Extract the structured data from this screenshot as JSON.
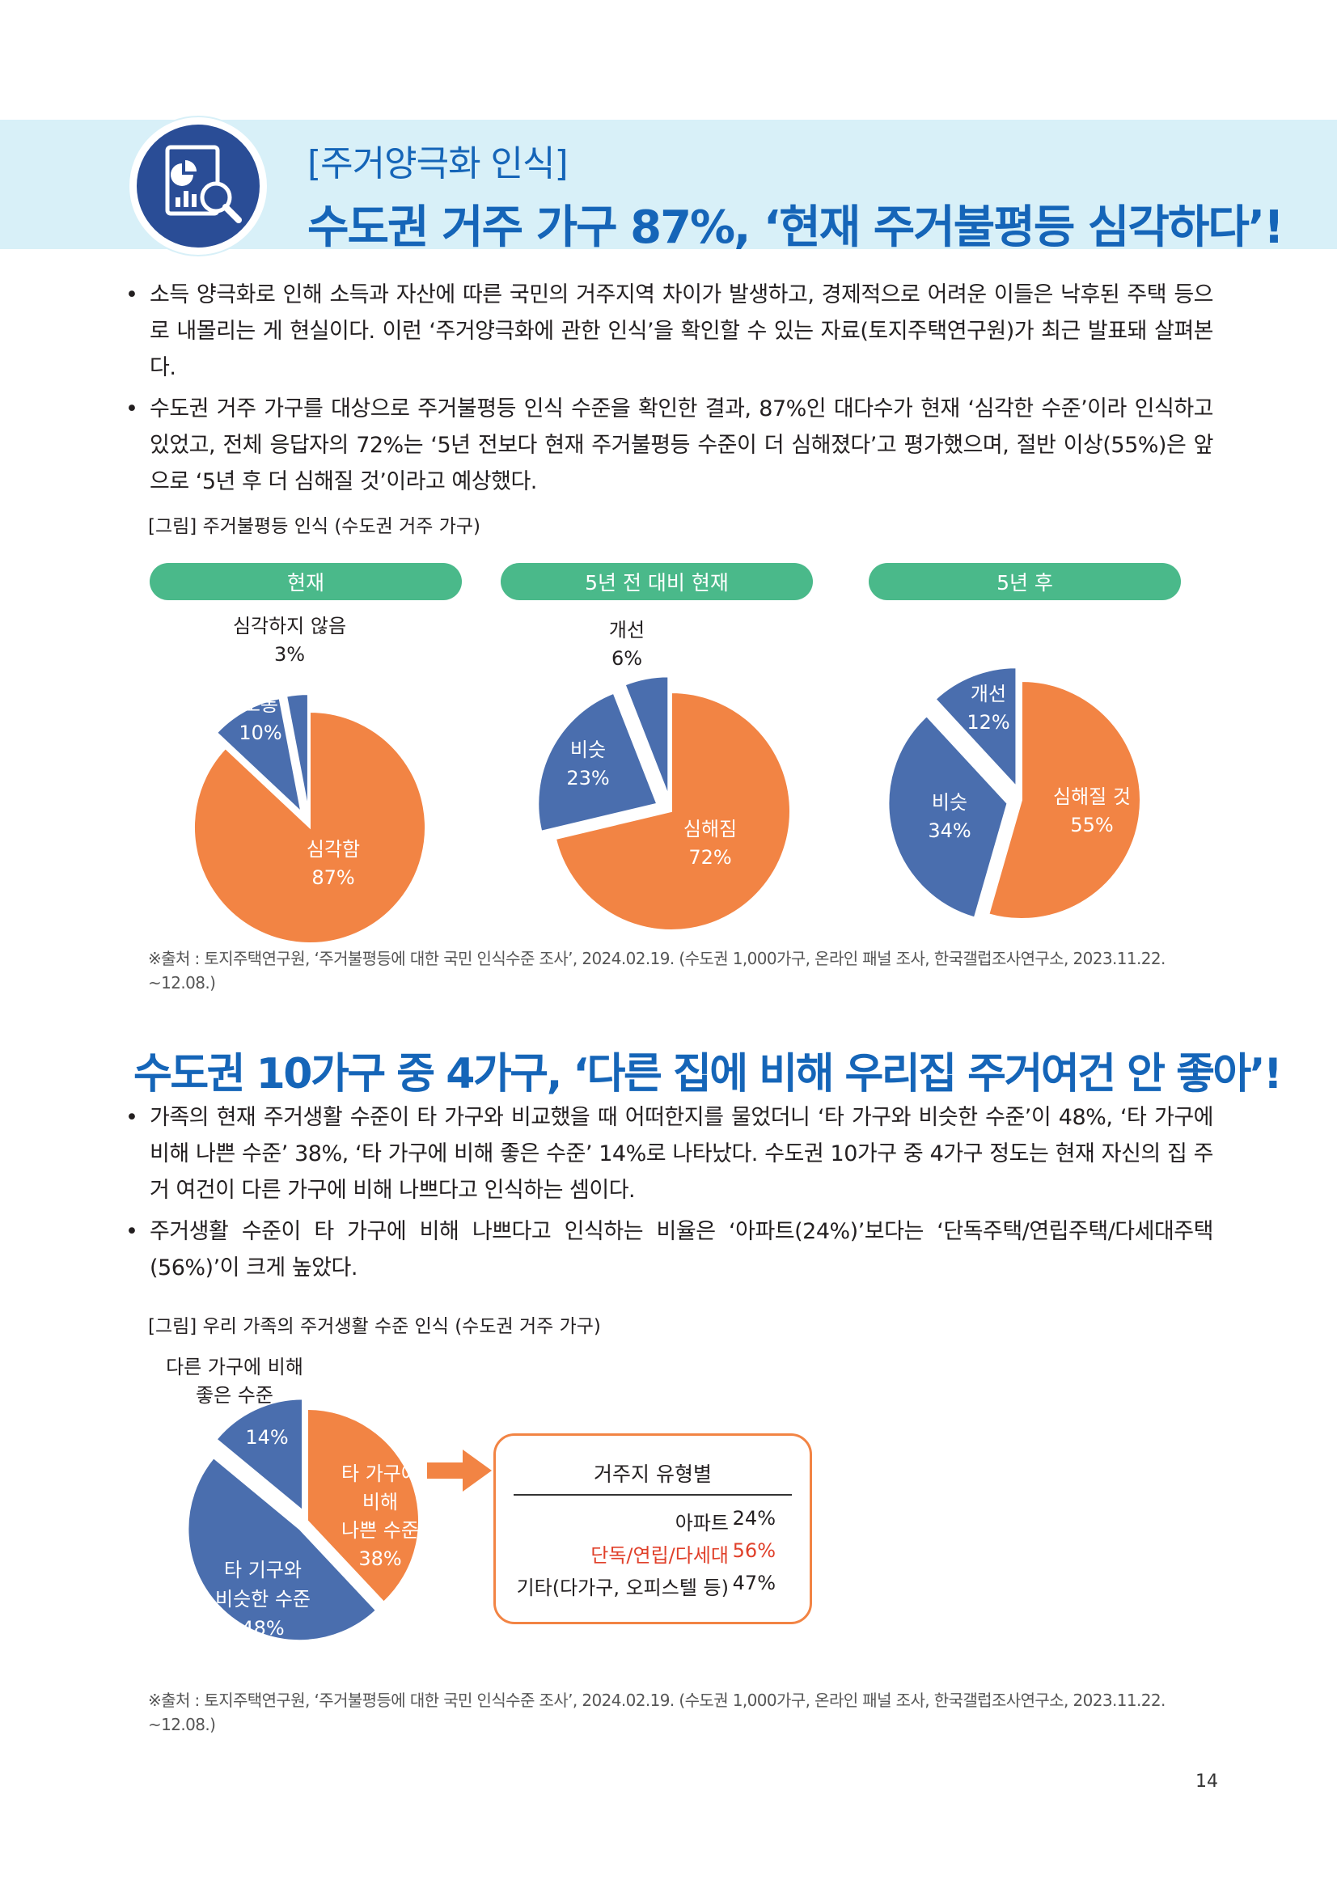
{
  "header": {
    "subtitle": "[주거양극화 인식]",
    "title": "수도권 거주 가구 87%, ‘현재 주거불평등 심각하다’!"
  },
  "section1": {
    "bullets": [
      "소득 양극화로 인해 소득과 자산에 따른 국민의 거주지역 차이가 발생하고, 경제적으로 어려운 이들은 낙후된 주택 등으로 내몰리는 게 현실이다. 이런 ‘주거양극화에 관한 인식’을 확인할 수 있는 자료(토지주택연구원)가 최근 발표돼 살펴본다.",
      "수도권 거주 가구를 대상으로 주거불평등 인식 수준을 확인한 결과, 87%인 대다수가 현재 ‘심각한 수준’이라 인식하고 있었고, 전체 응답자의 72%는 ‘5년 전보다 현재 주거불평등 수준이 더 심해졌다’고 평가했으며, 절반 이상(55%)은 앞으로 ‘5년 후 더 심해질 것’이라고 예상했다."
    ],
    "figure_caption": "[그림] 주거불평등 인식 (수도권 거주 가구)",
    "source": "※출처 : 토지주택연구원, ‘주거불평등에 대한 국민 인식수준 조사’, 2024.02.19. (수도권 1,000가구, 온라인 패널 조사, 한국갤럽조사연구소, 2023.11.22. ~12.08.)"
  },
  "chart_data": [
    {
      "type": "pie",
      "title": "현재",
      "series": [
        {
          "label": "심각함",
          "value": 87,
          "display": "87%",
          "color": "#f28444"
        },
        {
          "label": "보통",
          "value": 10,
          "display": "10%",
          "color": "#4a6eae"
        },
        {
          "label": "심각하지 않음",
          "value": 3,
          "display": "3%",
          "color": "#4a6eae"
        }
      ]
    },
    {
      "type": "pie",
      "title": "5년 전 대비 현재",
      "series": [
        {
          "label": "심해짐",
          "value": 72,
          "display": "72%",
          "color": "#f28444"
        },
        {
          "label": "비슷",
          "value": 23,
          "display": "23%",
          "color": "#4a6eae"
        },
        {
          "label": "개선",
          "value": 6,
          "display": "6%",
          "color": "#4a6eae"
        }
      ]
    },
    {
      "type": "pie",
      "title": "5년 후",
      "series": [
        {
          "label": "심해질 것",
          "value": 55,
          "display": "55%",
          "color": "#f28444"
        },
        {
          "label": "비슷",
          "value": 34,
          "display": "34%",
          "color": "#4a6eae"
        },
        {
          "label": "개선",
          "value": 12,
          "display": "12%",
          "color": "#4a6eae"
        }
      ]
    },
    {
      "type": "pie",
      "title": "",
      "series": [
        {
          "label": "다른 가구에 비해 좋은 수준",
          "value": 14,
          "display": "14%",
          "color": "#4a6eae"
        },
        {
          "label": "타 가구에 비해 나쁜 수준",
          "value": 38,
          "display": "38%",
          "color": "#f28444"
        },
        {
          "label": "타 기구와 비슷한 수준",
          "value": 48,
          "display": "48%",
          "color": "#4a6eae"
        }
      ]
    }
  ],
  "section2": {
    "title": "수도권 10가구 중 4가구, ‘다른 집에 비해 우리집 주거여건 안 좋아’!",
    "bullets": [
      "가족의 현재 주거생활 수준이 타 가구와 비교했을 때 어떠한지를 물었더니 ‘타 가구와 비슷한 수준’이 48%, ‘타 가구에 비해 나쁜 수준’ 38%, ‘타 가구에 비해 좋은 수준’ 14%로 나타났다. 수도권 10가구 중 4가구 정도는 현재 자신의 집 주거 여건이 다른 가구에 비해 나쁘다고 인식하는 셈이다.",
      "주거생활 수준이 타 가구에 비해 나쁘다고 인식하는 비율은 ‘아파트(24%)’보다는 ‘단독주택/연립주택/다세대주택(56%)’이 크게 높았다."
    ],
    "figure_caption": "[그림] 우리 가족의 주거생활 수준 인식 (수도권 거주 가구)",
    "good_label_1": "다른 가구에 비해",
    "good_label_2": "좋은 수준",
    "good_value": "14%",
    "bad_label_1": "타 가구에",
    "bad_label_2": "비해",
    "bad_label_3": "나쁜 수준",
    "bad_value": "38%",
    "similar_label_1": "타 기구와",
    "similar_label_2": "비슷한 수준",
    "similar_value": "48%",
    "box": {
      "title": "거주지 유형별",
      "rows": [
        {
          "label": "아파트",
          "value": "24%",
          "color": "#231f20"
        },
        {
          "label": "단독/연립/다세대",
          "value": "56%",
          "color": "#e0402a"
        },
        {
          "label": "기타(다가구, 오피스텔 등)",
          "value": "47%",
          "color": "#231f20"
        }
      ]
    },
    "source": "※출처 : 토지주택연구원, ‘주거불평등에 대한 국민 인식수준 조사’, 2024.02.19. (수도권 1,000가구, 온라인 패널 조사, 한국갤럽조사연구소, 2023.11.22. ~12.08.)"
  },
  "page_number": "14",
  "icons": {
    "header_icon": "chart-magnifier-icon",
    "arrow": "arrow-right-icon"
  }
}
